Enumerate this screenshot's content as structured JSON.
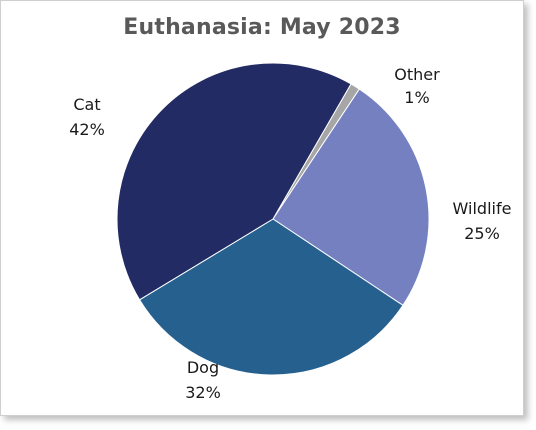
{
  "chart_data": {
    "type": "pie",
    "title": "Euthanasia: May 2023",
    "slices": [
      {
        "name": "Other",
        "label": "Other",
        "pct_label": "1%",
        "value": 1,
        "color": "#a6a6a6"
      },
      {
        "name": "Wildlife",
        "label": "Wildlife",
        "pct_label": "25%",
        "value": 25,
        "color": "#7480c0"
      },
      {
        "name": "Dog",
        "label": "Dog",
        "pct_label": "32%",
        "value": 32,
        "color": "#25608f"
      },
      {
        "name": "Cat",
        "label": "Cat",
        "pct_label": "42%",
        "value": 42,
        "color": "#222b63"
      }
    ],
    "start_angle_deg": 30,
    "direction": "clockwise",
    "legend": "none"
  }
}
